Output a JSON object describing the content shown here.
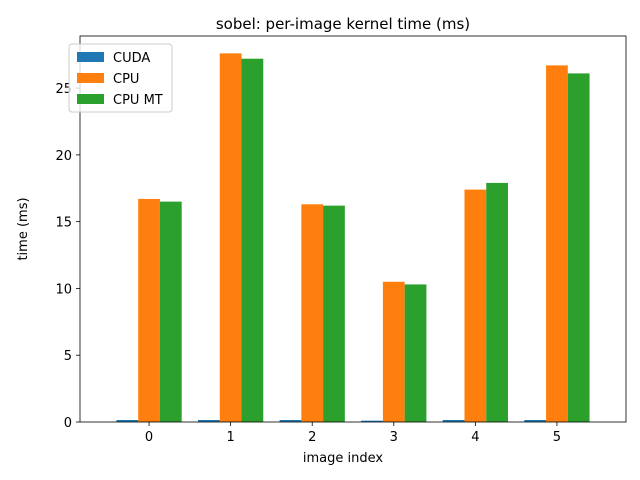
{
  "chart_data": {
    "type": "bar",
    "title": "sobel: per-image kernel time (ms)",
    "xlabel": "image index",
    "ylabel": "time (ms)",
    "categories": [
      "0",
      "1",
      "2",
      "3",
      "4",
      "5"
    ],
    "ylim": [
      0,
      28.9
    ],
    "yticks": [
      0,
      5,
      10,
      15,
      20,
      25
    ],
    "grid": false,
    "legend_position": "top-left",
    "series": [
      {
        "name": "CUDA",
        "color": "#1f77b4",
        "values": [
          0.15,
          0.15,
          0.15,
          0.1,
          0.15,
          0.15
        ]
      },
      {
        "name": "CPU",
        "color": "#ff7f0e",
        "values": [
          16.7,
          27.6,
          16.3,
          10.5,
          17.4,
          26.7
        ]
      },
      {
        "name": "CPU MT",
        "color": "#2ca02c",
        "values": [
          16.5,
          27.2,
          16.2,
          10.3,
          17.9,
          26.1
        ]
      }
    ]
  }
}
